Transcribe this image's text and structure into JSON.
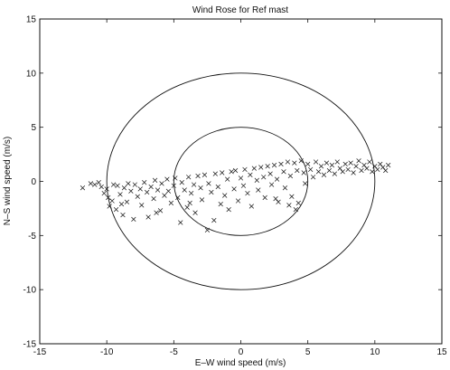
{
  "chart_data": {
    "type": "scatter",
    "title": "Wind Rose for Ref mast",
    "xlabel": "E–W wind speed (m/s)",
    "ylabel": "N–S wind speed (m/s)",
    "xlim": [
      -15,
      15
    ],
    "ylim": [
      -15,
      15
    ],
    "xticks": [
      -15,
      -10,
      -5,
      0,
      5,
      10,
      15
    ],
    "yticks": [
      -15,
      -10,
      -5,
      0,
      5,
      10,
      15
    ],
    "xtick_labels": [
      "-15",
      "-10",
      "-5",
      "0",
      "5",
      "10",
      "15"
    ],
    "ytick_labels": [
      "-15",
      "-10",
      "-5",
      "0",
      "5",
      "10",
      "15"
    ],
    "grid": false,
    "marker": "x",
    "reference_circles": [
      {
        "center": [
          0,
          0
        ],
        "radius": 5
      },
      {
        "center": [
          0,
          0
        ],
        "radius": 10
      }
    ],
    "series": [
      {
        "points": [
          [
            -11.8,
            -0.6
          ],
          [
            -11.2,
            -0.2
          ],
          [
            -10.9,
            -0.3
          ],
          [
            -10.6,
            -0.1
          ],
          [
            -10.4,
            -0.5
          ],
          [
            -10.2,
            -1.1
          ],
          [
            -10.0,
            -0.7
          ],
          [
            -9.9,
            -1.5
          ],
          [
            -9.8,
            -2.3
          ],
          [
            -9.6,
            -1.8
          ],
          [
            -9.5,
            -0.3
          ],
          [
            -9.3,
            -2.6
          ],
          [
            -9.2,
            -0.4
          ],
          [
            -9.0,
            -1.2
          ],
          [
            -8.8,
            -3.1
          ],
          [
            -8.7,
            -0.6
          ],
          [
            -8.5,
            -1.9
          ],
          [
            -8.4,
            -0.2
          ],
          [
            -8.2,
            -0.9
          ],
          [
            -8.0,
            -3.5
          ],
          [
            -7.9,
            -0.3
          ],
          [
            -7.7,
            -1.4
          ],
          [
            -7.5,
            -0.7
          ],
          [
            -7.4,
            -2.2
          ],
          [
            -7.2,
            -0.1
          ],
          [
            -7.0,
            -1.0
          ],
          [
            -6.9,
            -3.3
          ],
          [
            -6.7,
            -0.5
          ],
          [
            -6.5,
            -1.6
          ],
          [
            -6.4,
            0.1
          ],
          [
            -6.2,
            -0.8
          ],
          [
            -6.0,
            -2.7
          ],
          [
            -5.9,
            -0.2
          ],
          [
            -5.7,
            -1.3
          ],
          [
            -5.5,
            0.2
          ],
          [
            -5.4,
            -0.9
          ],
          [
            -5.2,
            -2.0
          ],
          [
            -5.0,
            -0.4
          ],
          [
            -4.9,
            0.3
          ],
          [
            -4.7,
            -1.5
          ],
          [
            -4.5,
            -3.8
          ],
          [
            -4.4,
            -0.1
          ],
          [
            -4.2,
            -0.8
          ],
          [
            -4.0,
            -2.4
          ],
          [
            -3.9,
            0.4
          ],
          [
            -3.7,
            -1.1
          ],
          [
            -3.5,
            -0.3
          ],
          [
            -3.4,
            -2.9
          ],
          [
            -3.2,
            0.5
          ],
          [
            -3.0,
            -0.6
          ],
          [
            -2.9,
            -1.7
          ],
          [
            -2.7,
            0.6
          ],
          [
            -2.5,
            -4.5
          ],
          [
            -2.4,
            -0.2
          ],
          [
            -2.2,
            -1.0
          ],
          [
            -2.0,
            -3.6
          ],
          [
            -1.9,
            0.7
          ],
          [
            -1.7,
            -0.5
          ],
          [
            -1.5,
            -2.1
          ],
          [
            -1.4,
            0.8
          ],
          [
            -1.2,
            -1.3
          ],
          [
            -1.0,
            0.2
          ],
          [
            -0.9,
            -2.6
          ],
          [
            -0.7,
            0.9
          ],
          [
            -0.5,
            -0.7
          ],
          [
            -0.4,
            1.0
          ],
          [
            -0.2,
            -1.8
          ],
          [
            0.0,
            0.3
          ],
          [
            0.2,
            -0.4
          ],
          [
            0.3,
            1.1
          ],
          [
            0.5,
            -1.1
          ],
          [
            0.7,
            0.6
          ],
          [
            0.8,
            -2.3
          ],
          [
            1.0,
            1.2
          ],
          [
            1.2,
            0.1
          ],
          [
            1.3,
            -0.8
          ],
          [
            1.5,
            1.3
          ],
          [
            1.7,
            0.4
          ],
          [
            1.8,
            -1.5
          ],
          [
            2.0,
            1.4
          ],
          [
            2.2,
            0.7
          ],
          [
            2.3,
            -0.3
          ],
          [
            2.5,
            1.5
          ],
          [
            2.7,
            0.2
          ],
          [
            2.8,
            -1.9
          ],
          [
            3.0,
            1.6
          ],
          [
            3.2,
            0.9
          ],
          [
            3.3,
            -0.6
          ],
          [
            3.5,
            1.8
          ],
          [
            3.7,
            0.5
          ],
          [
            3.8,
            -1.4
          ],
          [
            4.0,
            1.7
          ],
          [
            4.2,
            1.0
          ],
          [
            4.3,
            -2.0
          ],
          [
            4.5,
            1.9
          ],
          [
            4.7,
            0.8
          ],
          [
            4.8,
            -0.2
          ],
          [
            5.0,
            1.6
          ],
          [
            5.2,
            1.1
          ],
          [
            5.4,
            0.4
          ],
          [
            5.6,
            1.8
          ],
          [
            5.8,
            0.9
          ],
          [
            6.0,
            1.4
          ],
          [
            6.2,
            0.6
          ],
          [
            6.4,
            1.7
          ],
          [
            6.6,
            1.0
          ],
          [
            6.8,
            1.5
          ],
          [
            7.0,
            0.7
          ],
          [
            7.2,
            1.8
          ],
          [
            7.4,
            1.2
          ],
          [
            7.6,
            0.9
          ],
          [
            7.8,
            1.6
          ],
          [
            8.0,
            1.1
          ],
          [
            8.2,
            1.7
          ],
          [
            8.4,
            0.8
          ],
          [
            8.6,
            1.4
          ],
          [
            8.8,
            1.9
          ],
          [
            9.0,
            1.0
          ],
          [
            9.2,
            1.5
          ],
          [
            9.4,
            1.2
          ],
          [
            9.6,
            1.8
          ],
          [
            9.8,
            0.9
          ],
          [
            10.0,
            1.4
          ],
          [
            10.2,
            1.1
          ],
          [
            10.4,
            1.6
          ],
          [
            10.6,
            1.3
          ],
          [
            10.8,
            1.0
          ],
          [
            11.0,
            1.5
          ],
          [
            4.1,
            -2.6
          ],
          [
            3.6,
            -2.2
          ],
          [
            2.6,
            -1.6
          ],
          [
            -3.8,
            -2.0
          ],
          [
            -6.3,
            -2.9
          ],
          [
            -8.9,
            -2.1
          ]
        ]
      }
    ]
  }
}
